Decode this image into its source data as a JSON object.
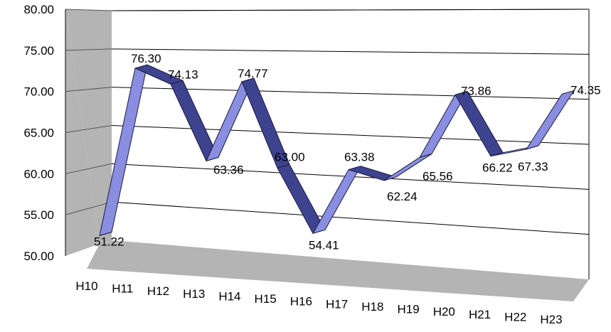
{
  "chart_data": {
    "type": "line",
    "style": "3d-ribbon",
    "title": "",
    "xlabel": "",
    "ylabel": "",
    "categories": [
      "H10",
      "H11",
      "H12",
      "H13",
      "H14",
      "H15",
      "H16",
      "H17",
      "H18",
      "H19",
      "H20",
      "H21",
      "H22",
      "H23"
    ],
    "series": [
      {
        "values": [
          51.22,
          76.3,
          74.13,
          63.36,
          74.77,
          63.0,
          54.41,
          63.38,
          62.24,
          65.56,
          73.86,
          66.22,
          67.33,
          74.35
        ],
        "labels": [
          "51.22",
          "76.30",
          "74.13",
          "63.36",
          "74.77",
          "63.00",
          "54.41",
          "63.38",
          "62.24",
          "65.56",
          "73.86",
          "66.22",
          "67.33",
          "74.35"
        ]
      }
    ],
    "ylim": [
      50,
      80
    ],
    "y_ticks": [
      "50.00",
      "55.00",
      "60.00",
      "65.00",
      "70.00",
      "75.00",
      "80.00"
    ],
    "grid": true,
    "colors": {
      "ribbon_top": "#8a8ee0",
      "ribbon_front": "#6a70cc",
      "ribbon_dark": "#3e438f",
      "back_wall": "#ffffff",
      "side_wall": "#b4b4b4",
      "floor": "#b4b4b4",
      "gridline": "#000000"
    }
  }
}
